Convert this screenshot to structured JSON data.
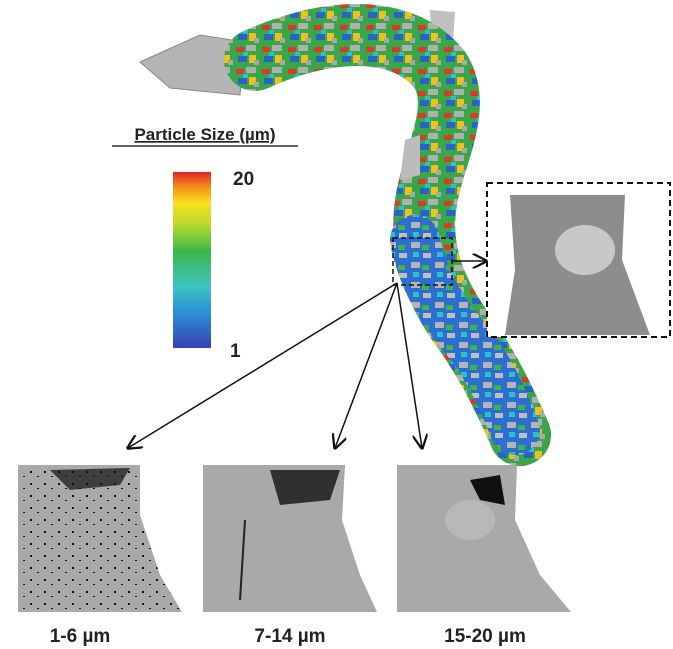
{
  "colorbar": {
    "title": "Particle Size (µm)",
    "max": 20,
    "min": 1
  },
  "panels": [
    {
      "label": "1-6 µm"
    },
    {
      "label": "7-14 µm"
    },
    {
      "label": "15-20 µm"
    }
  ]
}
